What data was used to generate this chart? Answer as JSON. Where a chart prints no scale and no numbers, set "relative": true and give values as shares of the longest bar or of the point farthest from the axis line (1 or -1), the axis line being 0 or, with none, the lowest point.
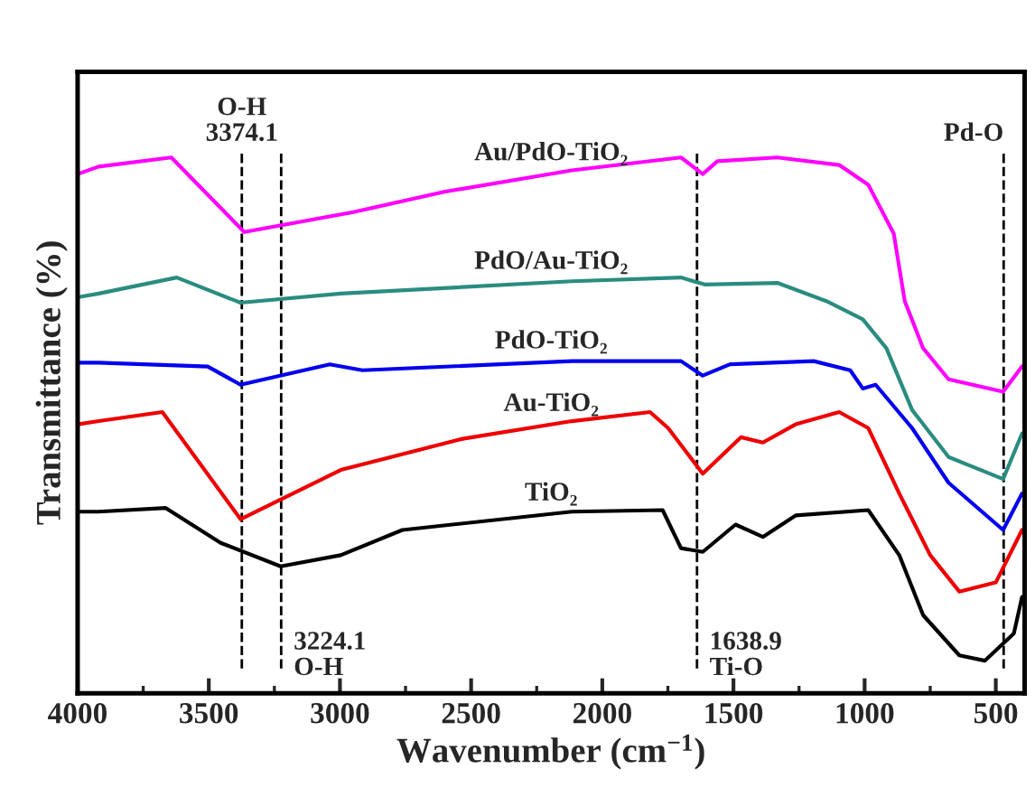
{
  "chart_data": {
    "type": "line",
    "relative": true,
    "xlabel": "Wavenumber (cm$^{−1}$)",
    "ylabel": "Transmittance (%)",
    "xlim": [
      4000,
      390
    ],
    "xticks": [
      4000,
      3500,
      3000,
      2500,
      2000,
      1500,
      1000,
      500
    ],
    "grid": false,
    "legend": false,
    "tick_labels": "x",
    "marker": "none",
    "line_style": "solid",
    "series": [
      {
        "name": "Au/PdO-TiO₂",
        "color": "#ff00ff",
        "x": [
          4000,
          3920,
          3643,
          3365,
          2949,
          2602,
          2116,
          1700,
          1617,
          1561,
          1333,
          1097,
          986,
          889,
          847,
          777,
          680,
          472,
          400
        ],
        "values": [
          0.969,
          0.983,
          1.0,
          0.861,
          0.898,
          0.936,
          0.976,
          1.0,
          0.969,
          0.993,
          1.0,
          0.986,
          0.949,
          0.858,
          0.732,
          0.644,
          0.586,
          0.563,
          0.61
        ]
      },
      {
        "name": "PdO/Au-TiO₂",
        "color": "#2a8c80",
        "x": [
          4000,
          3920,
          3622,
          3379,
          2997,
          2116,
          1700,
          1610,
          1333,
          1146,
          1007,
          917,
          819,
          680,
          472,
          400
        ],
        "values": [
          0.739,
          0.746,
          0.776,
          0.729,
          0.746,
          0.769,
          0.776,
          0.763,
          0.766,
          0.732,
          0.698,
          0.644,
          0.529,
          0.441,
          0.4,
          0.485
        ]
      },
      {
        "name": "PdO-TiO₂",
        "color": "#0000ee",
        "x": [
          4000,
          3920,
          3504,
          3379,
          3039,
          2914,
          2116,
          1700,
          1617,
          1513,
          1194,
          1055,
          1007,
          958,
          819,
          680,
          472,
          400
        ],
        "values": [
          0.617,
          0.617,
          0.61,
          0.576,
          0.614,
          0.603,
          0.62,
          0.62,
          0.593,
          0.614,
          0.62,
          0.603,
          0.569,
          0.576,
          0.495,
          0.393,
          0.305,
          0.373
        ]
      },
      {
        "name": "Au-TiO₂",
        "color": "#ee0000",
        "x": [
          4000,
          3920,
          3677,
          3379,
          2997,
          2533,
          2116,
          1818,
          1749,
          1617,
          1471,
          1388,
          1263,
          1097,
          986,
          868,
          750,
          639,
          500,
          400
        ],
        "values": [
          0.502,
          0.508,
          0.525,
          0.325,
          0.417,
          0.475,
          0.508,
          0.525,
          0.495,
          0.41,
          0.478,
          0.468,
          0.502,
          0.525,
          0.495,
          0.373,
          0.258,
          0.19,
          0.207,
          0.305
        ]
      },
      {
        "name": "TiO₂",
        "color": "#000000",
        "x": [
          4000,
          3920,
          3664,
          3455,
          3226,
          2997,
          2762,
          2116,
          1770,
          1700,
          1617,
          1492,
          1388,
          1263,
          986,
          868,
          777,
          639,
          542,
          431,
          400
        ],
        "values": [
          0.339,
          0.339,
          0.346,
          0.281,
          0.237,
          0.258,
          0.305,
          0.339,
          0.342,
          0.271,
          0.264,
          0.315,
          0.292,
          0.332,
          0.342,
          0.258,
          0.146,
          0.071,
          0.061,
          0.112,
          0.18
        ]
      }
    ],
    "ref_lines": [
      {
        "axis": "x",
        "value": 3374.1,
        "label": "O-H\n3374.1",
        "line_style": "dashed",
        "color": "#000000"
      },
      {
        "axis": "x",
        "value": 3224.1,
        "line_style": "dashed",
        "color": "#000000"
      },
      {
        "axis": "x",
        "value": 1638.9,
        "line_style": "dashed",
        "color": "#000000"
      },
      {
        "axis": "x",
        "value": 470,
        "label": "Pd-O",
        "line_style": "dashed",
        "color": "#000000"
      }
    ],
    "annotations": [
      {
        "text": "3224.1\nO-H",
        "x": 3224.1,
        "y": 0.07
      },
      {
        "text": "1638.9\nTi-O",
        "x": 1638.9,
        "y": 0.07
      }
    ]
  }
}
